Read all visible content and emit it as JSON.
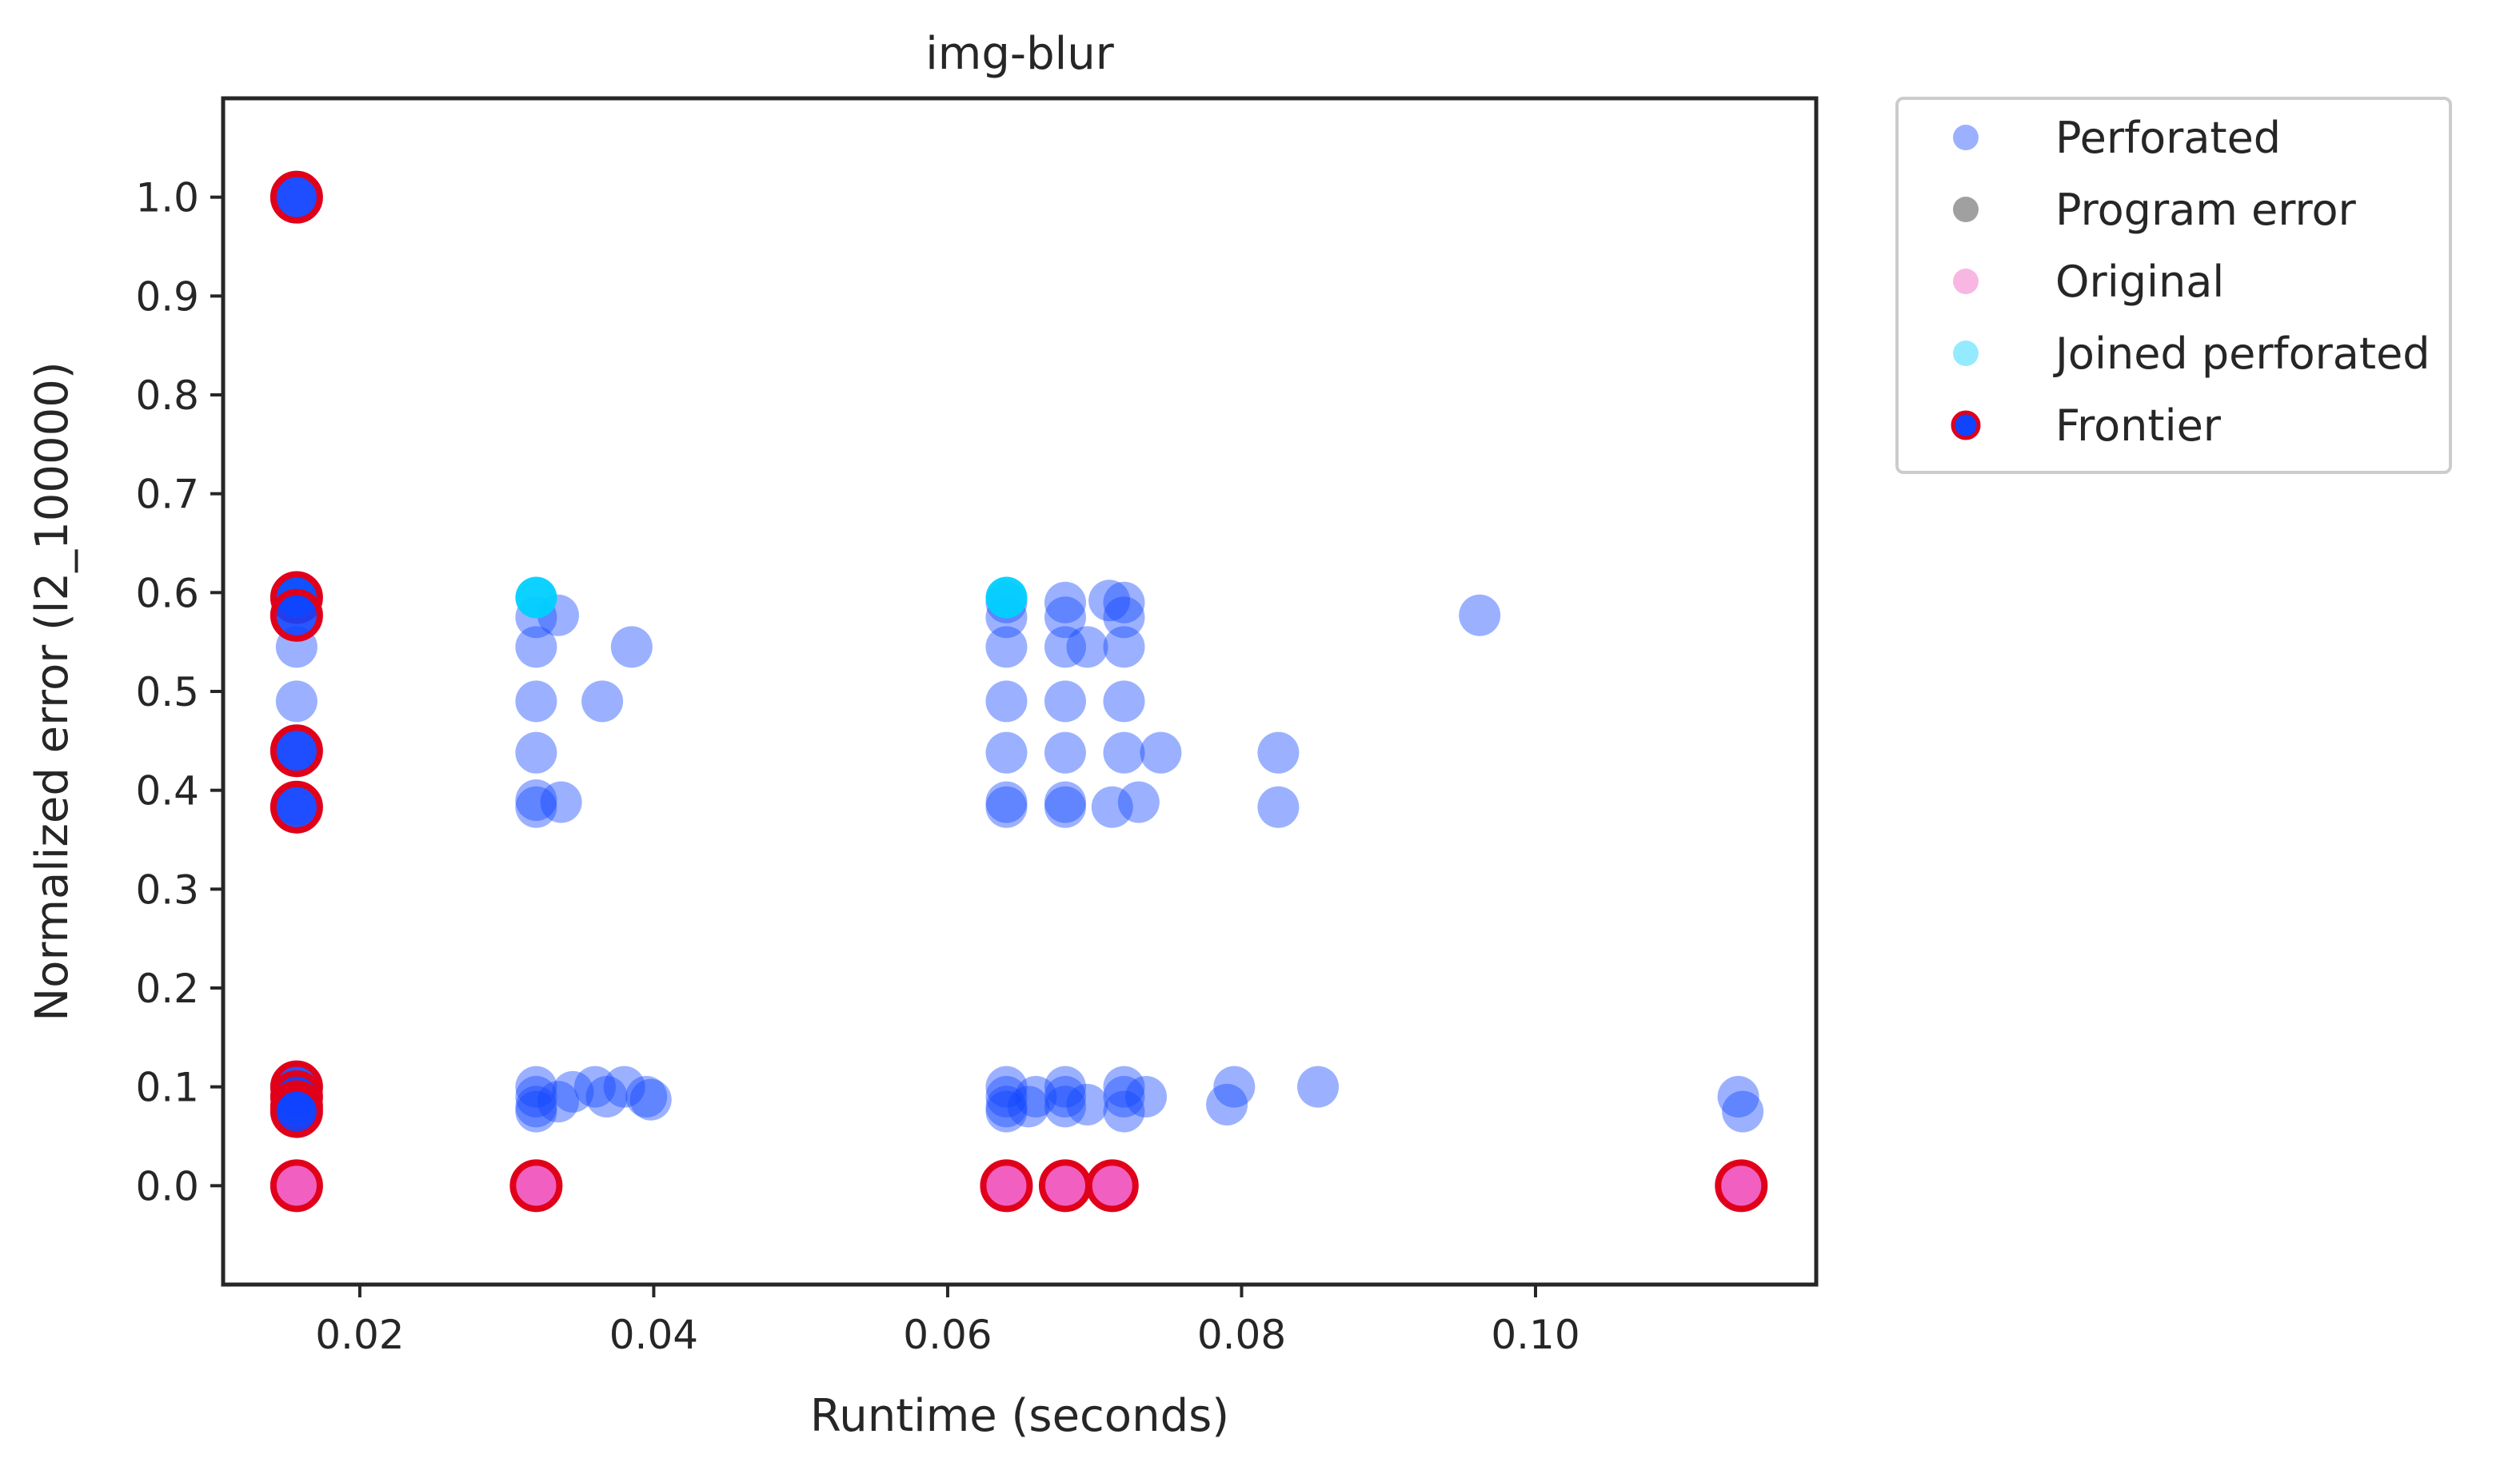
{
  "chart_data": {
    "type": "scatter",
    "title": "img-blur",
    "xlabel": "Runtime (seconds)",
    "ylabel": "Normalized error (l2_100000)",
    "xlim": [
      0.0107,
      0.1191
    ],
    "ylim": [
      -0.1,
      1.1
    ],
    "xticks": [
      0.02,
      0.04,
      0.06,
      0.08,
      0.1
    ],
    "xtick_labels": [
      "0.02",
      "0.04",
      "0.06",
      "0.08",
      "0.10"
    ],
    "yticks": [
      0.0,
      0.1,
      0.2,
      0.3,
      0.4,
      0.5,
      0.6,
      0.7,
      0.8,
      0.9,
      1.0
    ],
    "ytick_labels": [
      "0.0",
      "0.1",
      "0.2",
      "0.3",
      "0.4",
      "0.5",
      "0.6",
      "0.7",
      "0.8",
      "0.9",
      "1.0"
    ],
    "grid": false,
    "legend_position": "outside-right-top",
    "series": [
      {
        "name": "Perforated",
        "color": "#1144ff",
        "points": [
          [
            0.0157,
            1.0
          ],
          [
            0.0157,
            0.545
          ],
          [
            0.0157,
            0.49
          ],
          [
            0.0157,
            0.44
          ],
          [
            0.0157,
            0.385
          ],
          [
            0.0157,
            0.09
          ],
          [
            0.032,
            0.575
          ],
          [
            0.032,
            0.545
          ],
          [
            0.032,
            0.49
          ],
          [
            0.032,
            0.438
          ],
          [
            0.032,
            0.39
          ],
          [
            0.032,
            0.383
          ],
          [
            0.032,
            0.1
          ],
          [
            0.032,
            0.09
          ],
          [
            0.032,
            0.08
          ],
          [
            0.032,
            0.075
          ],
          [
            0.0335,
            0.577
          ],
          [
            0.0337,
            0.388
          ],
          [
            0.0335,
            0.085
          ],
          [
            0.0345,
            0.095
          ],
          [
            0.036,
            0.1
          ],
          [
            0.0365,
            0.49
          ],
          [
            0.0368,
            0.09
          ],
          [
            0.038,
            0.1
          ],
          [
            0.0385,
            0.545
          ],
          [
            0.0395,
            0.09
          ],
          [
            0.0398,
            0.087
          ],
          [
            0.064,
            0.59
          ],
          [
            0.064,
            0.575
          ],
          [
            0.064,
            0.545
          ],
          [
            0.064,
            0.49
          ],
          [
            0.064,
            0.438
          ],
          [
            0.064,
            0.388
          ],
          [
            0.064,
            0.383
          ],
          [
            0.064,
            0.1
          ],
          [
            0.064,
            0.09
          ],
          [
            0.064,
            0.08
          ],
          [
            0.064,
            0.075
          ],
          [
            0.0655,
            0.08
          ],
          [
            0.066,
            0.09
          ],
          [
            0.068,
            0.59
          ],
          [
            0.068,
            0.575
          ],
          [
            0.068,
            0.545
          ],
          [
            0.068,
            0.49
          ],
          [
            0.068,
            0.438
          ],
          [
            0.068,
            0.388
          ],
          [
            0.068,
            0.383
          ],
          [
            0.068,
            0.1
          ],
          [
            0.068,
            0.09
          ],
          [
            0.068,
            0.08
          ],
          [
            0.0695,
            0.545
          ],
          [
            0.0695,
            0.082
          ],
          [
            0.071,
            0.592
          ],
          [
            0.0712,
            0.383
          ],
          [
            0.072,
            0.59
          ],
          [
            0.072,
            0.575
          ],
          [
            0.072,
            0.545
          ],
          [
            0.072,
            0.49
          ],
          [
            0.072,
            0.438
          ],
          [
            0.072,
            0.1
          ],
          [
            0.072,
            0.09
          ],
          [
            0.072,
            0.075
          ],
          [
            0.073,
            0.388
          ],
          [
            0.0735,
            0.09
          ],
          [
            0.0745,
            0.438
          ],
          [
            0.079,
            0.082
          ],
          [
            0.0795,
            0.1
          ],
          [
            0.0825,
            0.438
          ],
          [
            0.0825,
            0.383
          ],
          [
            0.0852,
            0.1
          ],
          [
            0.0962,
            0.577
          ],
          [
            0.1138,
            0.09
          ],
          [
            0.1141,
            0.075
          ]
        ]
      },
      {
        "name": "Program error",
        "color": "#a0a0a0",
        "points": []
      },
      {
        "name": "Original",
        "color": "#f060c0",
        "points": [
          [
            0.0157,
            0.0
          ],
          [
            0.032,
            0.0
          ],
          [
            0.064,
            0.0
          ],
          [
            0.068,
            0.0
          ],
          [
            0.0712,
            0.0
          ],
          [
            0.114,
            0.0
          ]
        ]
      },
      {
        "name": "Joined perforated",
        "color": "#00d0ff",
        "points": [
          [
            0.0157,
            0.595
          ],
          [
            0.032,
            0.595
          ],
          [
            0.064,
            0.595
          ]
        ]
      },
      {
        "name": "Frontier",
        "color": "#1144ff",
        "edgecolor": "#e0001a",
        "points": [
          [
            0.0157,
            1.0
          ],
          [
            0.0157,
            0.595
          ],
          [
            0.0157,
            0.577
          ],
          [
            0.0157,
            0.44
          ],
          [
            0.0157,
            0.383
          ],
          [
            0.0157,
            0.1
          ],
          [
            0.0157,
            0.09
          ],
          [
            0.0157,
            0.08
          ],
          [
            0.0157,
            0.075
          ],
          [
            0.0157,
            0.0
          ],
          [
            0.032,
            0.0
          ],
          [
            0.064,
            0.0
          ],
          [
            0.068,
            0.0
          ],
          [
            0.0712,
            0.0
          ],
          [
            0.114,
            0.0
          ]
        ]
      }
    ]
  }
}
